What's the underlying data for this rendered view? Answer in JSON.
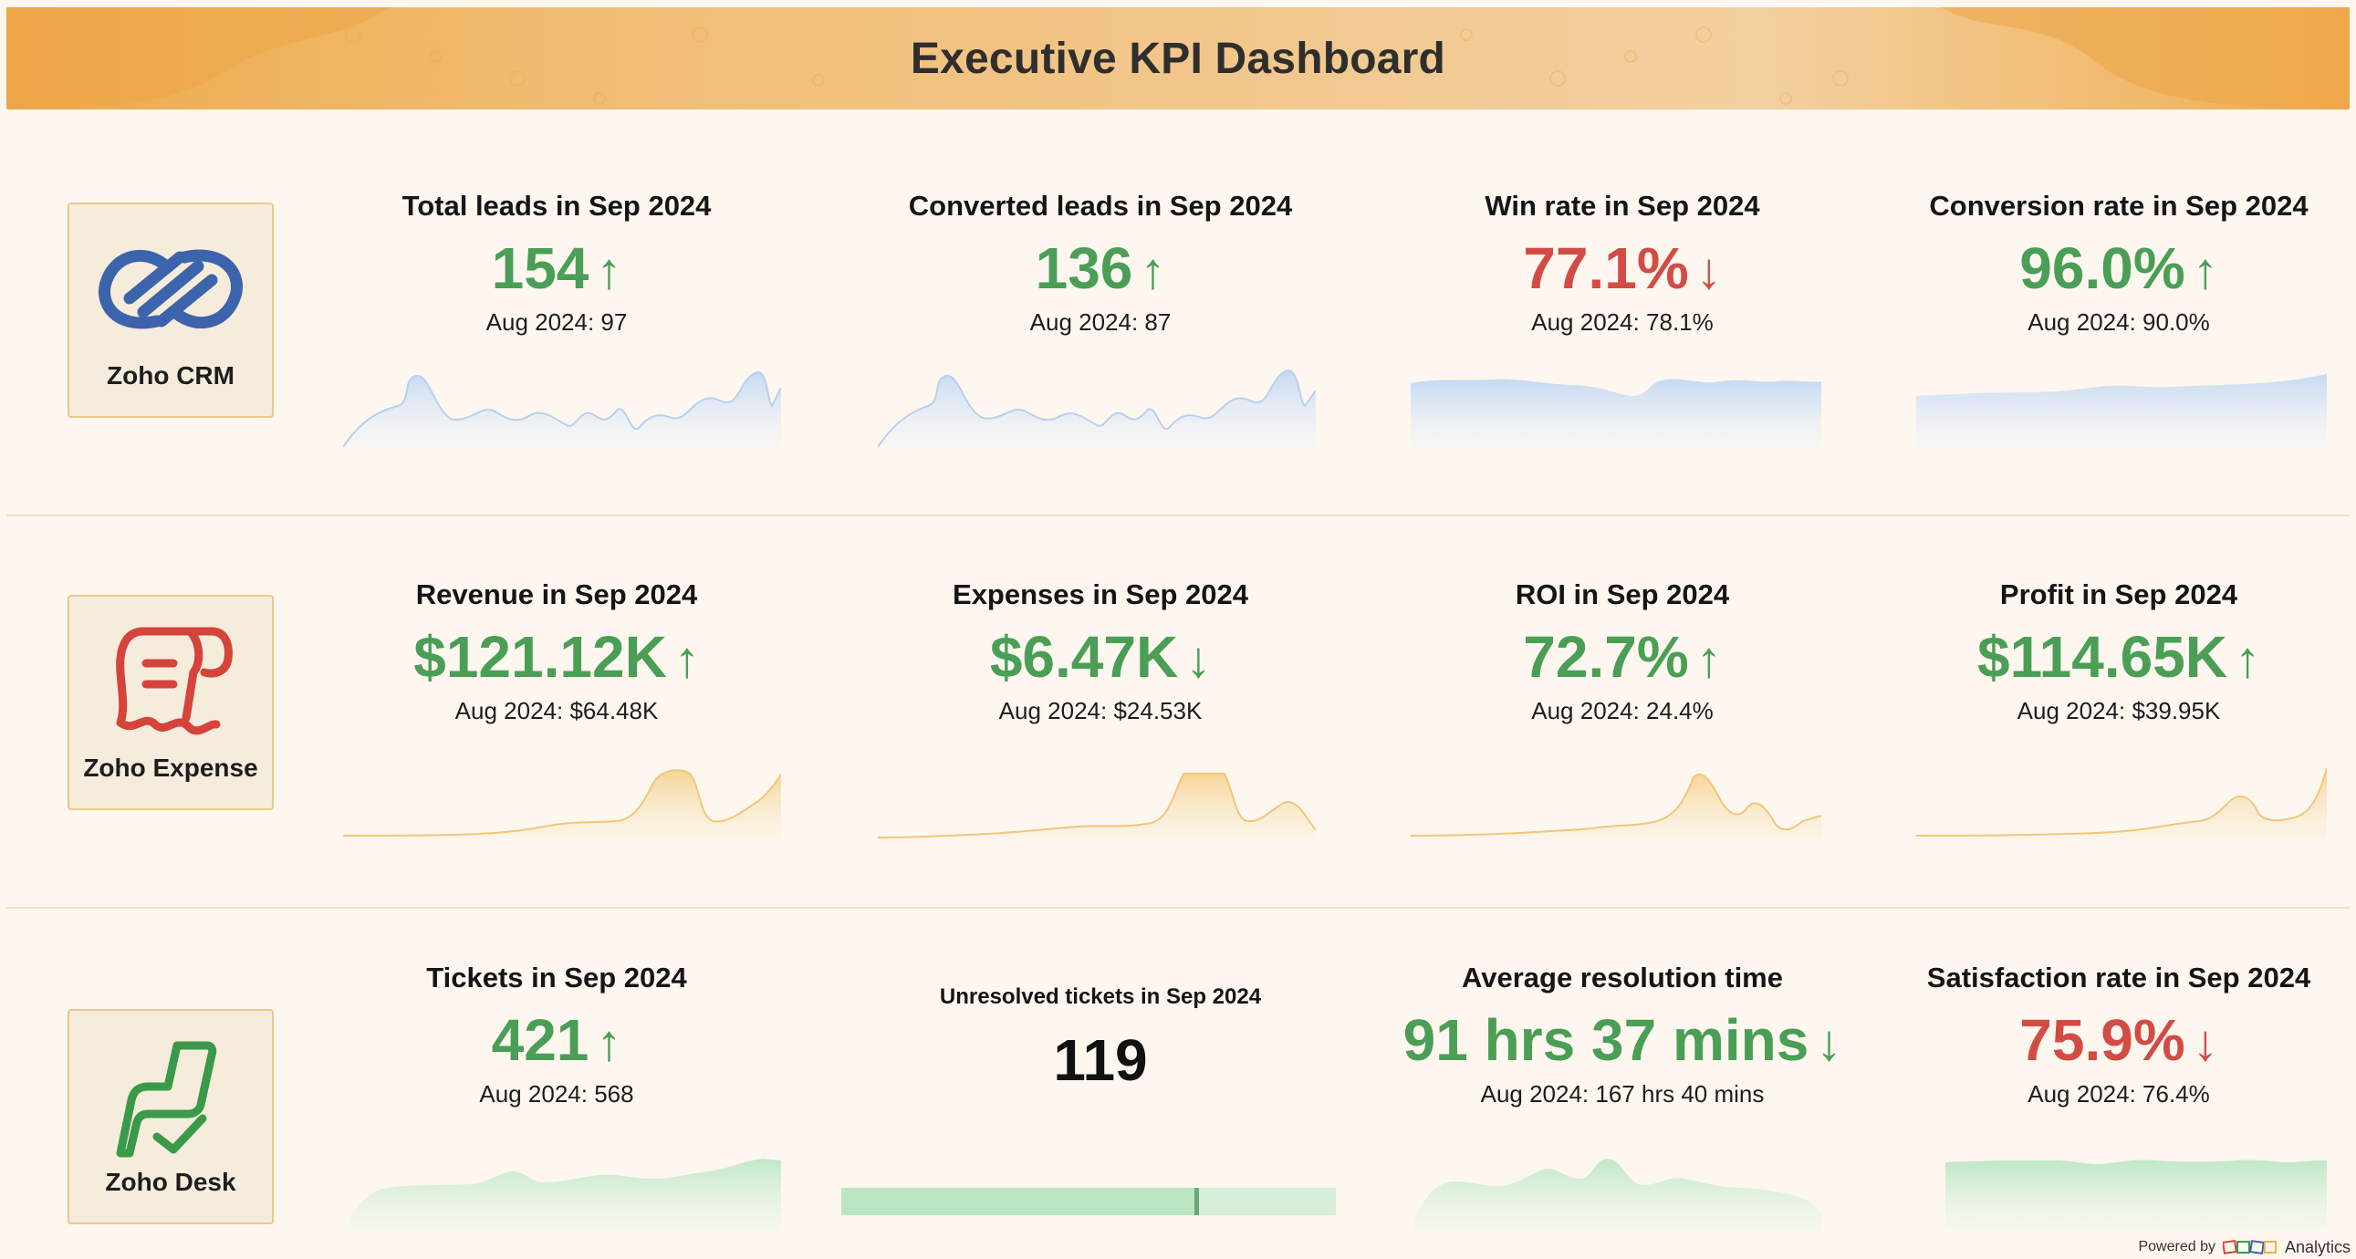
{
  "header": {
    "title": "Executive KPI Dashboard"
  },
  "colors": {
    "up_good": "#4a9e55",
    "down_bad": "#d24c45",
    "crm_spark": "#c9dcf3",
    "expense_spark": "#f7ddaa",
    "desk_spark": "#c8ebcf",
    "banner": "#efb35c"
  },
  "rows": {
    "crm": {
      "logo_label": "Zoho CRM",
      "logo_icon": "zoho-crm-icon",
      "kpis": [
        {
          "title": "Total leads in Sep 2024",
          "value": "154",
          "arrow": "↑",
          "prev": "Aug 2024: 97"
        },
        {
          "title": "Converted leads in Sep 2024",
          "value": "136",
          "arrow": "↑",
          "prev": "Aug 2024: 87"
        },
        {
          "title": "Win rate in Sep 2024",
          "value": "77.1%",
          "arrow": "↓",
          "prev": "Aug 2024: 78.1%"
        },
        {
          "title": "Conversion rate in Sep 2024",
          "value": "96.0%",
          "arrow": "↑",
          "prev": "Aug 2024: 90.0%"
        }
      ]
    },
    "expense": {
      "logo_label": "Zoho Expense",
      "logo_icon": "zoho-expense-icon",
      "kpis": [
        {
          "title": "Revenue in Sep 2024",
          "value": "$121.12K",
          "arrow": "↑",
          "prev": "Aug 2024: $64.48K"
        },
        {
          "title": "Expenses in Sep 2024",
          "value": "$6.47K",
          "arrow": "↓",
          "prev": "Aug 2024: $24.53K"
        },
        {
          "title": "ROI in Sep 2024",
          "value": "72.7%",
          "arrow": "↑",
          "prev": "Aug 2024: 24.4%"
        },
        {
          "title": "Profit in Sep 2024",
          "value": "$114.65K",
          "arrow": "↑",
          "prev": "Aug 2024: $39.95K"
        }
      ]
    },
    "desk": {
      "logo_label": "Zoho Desk",
      "logo_icon": "zoho-desk-icon",
      "kpis": [
        {
          "title": "Tickets in Sep 2024",
          "value": "421",
          "arrow": "↑",
          "prev": "Aug 2024: 568"
        },
        {
          "title": "Unresolved tickets in Sep 2024",
          "value": "119",
          "progress": 0.72
        },
        {
          "title": "Average resolution time",
          "value": "91 hrs 37 mins",
          "arrow": "↓",
          "prev": "Aug 2024: 167 hrs 40 mins"
        },
        {
          "title": "Satisfaction rate in Sep 2024",
          "value": "75.9%",
          "arrow": "↓",
          "prev": "Aug 2024: 76.4%"
        }
      ]
    }
  },
  "footer": {
    "powered_by": "Powered by",
    "brand": "Analytics"
  }
}
